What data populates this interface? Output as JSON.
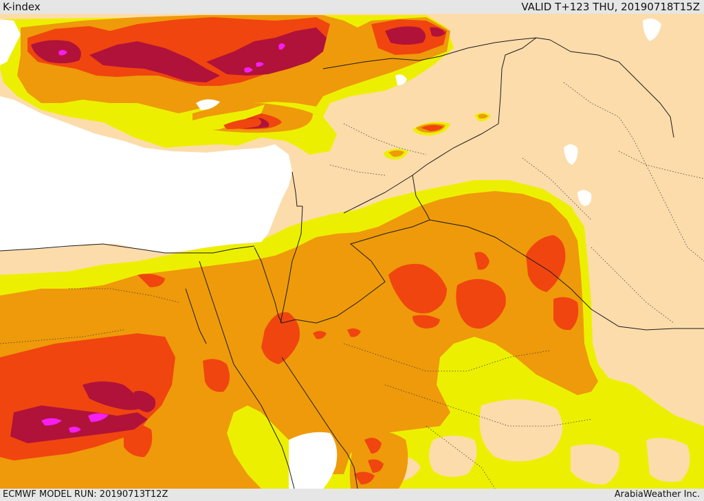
{
  "header": {
    "product": "K-index",
    "valid": "VALID T+123 THU, 20190718T15Z"
  },
  "footer": {
    "run": "ECMWF MODEL RUN: 20190713T12Z",
    "credit": "ArabiaWeather Inc."
  },
  "colors": {
    "land": "#fcdcab",
    "sea": "#ffffff",
    "yellow": "#ecf000",
    "orange": "#ee9a0a",
    "red_orange": "#f0450f",
    "dark_red": "#b0123a",
    "magenta": "#f41ff0",
    "border": "#1a1a1a"
  }
}
